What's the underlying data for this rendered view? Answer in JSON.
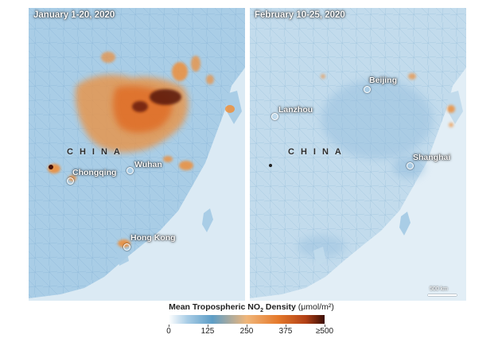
{
  "panels": [
    {
      "title": "January 1-20, 2020",
      "country_label": "CHINA",
      "cities": [
        "Chongqing",
        "Wuhan",
        "Hong Kong"
      ]
    },
    {
      "title": "February 10-25, 2020",
      "country_label": "CHINA",
      "cities": [
        "Beijing",
        "Lanzhou",
        "Shanghai"
      ],
      "scale_bar": "500 km"
    }
  ],
  "legend": {
    "title_main": "Mean Tropospheric NO",
    "title_sub": "2",
    "title_tail": " Density ",
    "unit": "(μmol/m²)",
    "ticks": [
      "0",
      "125",
      "250",
      "375",
      "≥500"
    ],
    "value_ticks": [
      0,
      125,
      250,
      375,
      500
    ],
    "range": [
      0,
      500
    ],
    "colors": [
      "#ffffff",
      "#a9cde6",
      "#5d9dc6",
      "#f0b67a",
      "#e57a2c",
      "#b24016",
      "#3a0d05"
    ]
  },
  "colors": {
    "sea": "#dbeaf4",
    "land": "#a9cde6",
    "land_edge": "#c9dfee",
    "road": "#5d92bb",
    "hot_orange": "#ee8f3a",
    "hot_red": "#b24016",
    "hot_dark": "#3a0d05"
  }
}
